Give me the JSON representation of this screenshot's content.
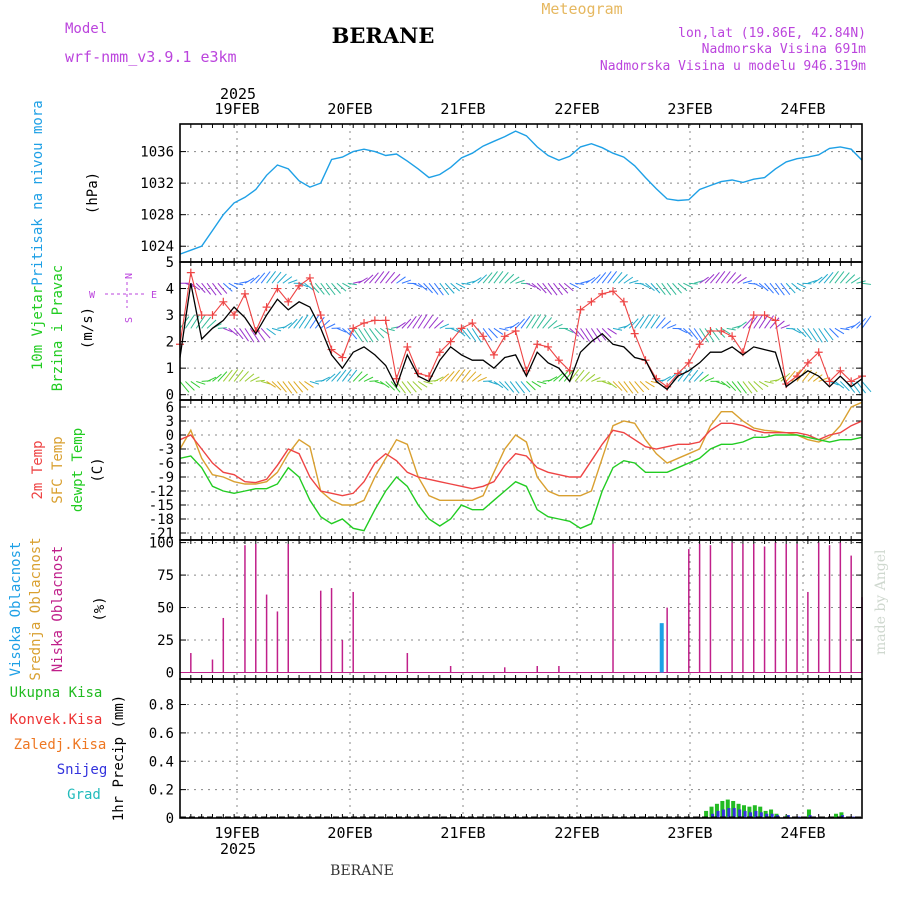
{
  "header": {
    "model_label": "Model",
    "model_name": "wrf-nmm_v3.9.1  e3km",
    "station": "BERANE",
    "product": "Meteogram",
    "lonlat": "lon,lat (19.86E, 42.84N)",
    "elevation": "Nadmorska Visina 691m",
    "model_elevation": "Nadmorska Visina u modelu 946.319m",
    "footer_station": "BERANE",
    "credit": "made by Angel"
  },
  "time_axis": {
    "year": "2025",
    "days": [
      "19FEB",
      "20FEB",
      "21FEB",
      "22FEB",
      "23FEB",
      "24FEB"
    ]
  },
  "colors": {
    "pressure": "#1ea0e6",
    "wind_label": "#22cc22",
    "wind_dir": "#bb44dd",
    "temp_2m": "#ee4444",
    "temp_sfc": "#d9a030",
    "temp_dew": "#22cc22",
    "cloud_high": "#1ea0e6",
    "cloud_mid": "#d9a030",
    "cloud_low": "#c0208a",
    "precip_total": "#22bb22",
    "precip_conv": "#ee3333",
    "precip_frz": "#ee7722",
    "precip_snow": "#3333dd",
    "precip_hail": "#22bbbb"
  },
  "chart_data": [
    {
      "type": "line",
      "ylabel": [
        "Pritisak na nivou mora",
        "(hPa)"
      ],
      "ylim": [
        1022,
        1039.5
      ],
      "yticks": [
        1024,
        1028,
        1032,
        1036
      ],
      "x": [
        0,
        1,
        2,
        3,
        4,
        5,
        6,
        7,
        8,
        9,
        10,
        11,
        12,
        13,
        14,
        15,
        16,
        17,
        18,
        19,
        20,
        21,
        22,
        23,
        24,
        25,
        26,
        27,
        28,
        29,
        30,
        31,
        32,
        33,
        34,
        35,
        36,
        37,
        38,
        39,
        40,
        41,
        42,
        43,
        44,
        45,
        46,
        47,
        48,
        49,
        50,
        51,
        52,
        53,
        54,
        55,
        56,
        57,
        58,
        59,
        60,
        61,
        62,
        63
      ],
      "series": [
        {
          "values": [
            1023,
            1023.5,
            1024,
            1026,
            1028,
            1029.5,
            1030.2,
            1031.2,
            1033,
            1034.3,
            1033.8,
            1032.3,
            1031.5,
            1032,
            1035,
            1035.3,
            1036,
            1036.3,
            1036,
            1035.5,
            1035.7,
            1034.8,
            1033.8,
            1032.7,
            1033.1,
            1034,
            1035.2,
            1035.8,
            1036.7,
            1037.3,
            1037.9,
            1038.6,
            1038,
            1036.6,
            1035.5,
            1034.9,
            1035.4,
            1036.6,
            1037,
            1036.5,
            1035.8,
            1035.3,
            1034.2,
            1032.7,
            1031.3,
            1030,
            1029.8,
            1029.9,
            1031.2,
            1031.7,
            1032.2,
            1032.4,
            1032.1,
            1032.5,
            1032.7,
            1033.8,
            1034.7,
            1035.1,
            1035.3,
            1035.6,
            1036.4,
            1036.6,
            1036.3,
            1034.9
          ]
        }
      ]
    },
    {
      "type": "line",
      "ylabel": [
        "10m Vjetar",
        "Brzina i Pravac",
        "(m/s)"
      ],
      "compass": {
        "n": "N",
        "w": "W",
        "e": "E",
        "s": "S"
      },
      "ylim": [
        -0.2,
        5
      ],
      "yticks": [
        0,
        1,
        2,
        3,
        4,
        5
      ],
      "x": [
        0,
        1,
        2,
        3,
        4,
        5,
        6,
        7,
        8,
        9,
        10,
        11,
        12,
        13,
        14,
        15,
        16,
        17,
        18,
        19,
        20,
        21,
        22,
        23,
        24,
        25,
        26,
        27,
        28,
        29,
        30,
        31,
        32,
        33,
        34,
        35,
        36,
        37,
        38,
        39,
        40,
        41,
        42,
        43,
        44,
        45,
        46,
        47,
        48,
        49,
        50,
        51,
        52,
        53,
        54,
        55,
        56,
        57,
        58,
        59,
        60,
        61,
        62,
        63
      ],
      "series": [
        {
          "name": "speed",
          "values": [
            1.4,
            4.2,
            2.1,
            2.5,
            2.8,
            3.3,
            2.9,
            2.3,
            3.0,
            3.6,
            3.2,
            3.5,
            3.3,
            2.5,
            1.5,
            1.0,
            1.6,
            1.8,
            1.5,
            1.1,
            0.3,
            1.5,
            0.7,
            0.5,
            1.3,
            1.8,
            1.5,
            1.3,
            1.3,
            1.0,
            1.4,
            1.5,
            0.7,
            1.6,
            1.2,
            1.0,
            0.5,
            1.6,
            2.0,
            2.3,
            1.9,
            1.8,
            1.4,
            1.3,
            0.5,
            0.2,
            0.7,
            0.9,
            1.2,
            1.6,
            1.6,
            1.8,
            1.5,
            1.8,
            1.7,
            1.6,
            0.3,
            0.6,
            0.9,
            0.7,
            0.3,
            0.7,
            0.3,
            0.6
          ]
        },
        {
          "name": "gust",
          "values": [
            1.9,
            4.6,
            3.0,
            3.0,
            3.5,
            3.0,
            3.8,
            2.4,
            3.3,
            4.0,
            3.5,
            4.1,
            4.4,
            3.0,
            1.7,
            1.4,
            2.5,
            2.7,
            2.8,
            2.8,
            0.6,
            1.8,
            0.8,
            0.7,
            1.6,
            2.0,
            2.5,
            2.7,
            2.2,
            1.5,
            2.2,
            2.4,
            0.9,
            1.9,
            1.8,
            1.3,
            0.9,
            3.2,
            3.5,
            3.8,
            3.9,
            3.5,
            2.3,
            1.3,
            0.6,
            0.3,
            0.8,
            1.2,
            1.9,
            2.4,
            2.4,
            2.2,
            1.6,
            3.0,
            3.0,
            2.8,
            0.4,
            0.7,
            1.2,
            1.6,
            0.5,
            0.9,
            0.5,
            0.7
          ]
        }
      ],
      "direction_bands": [
        4.2,
        2.5,
        0.5
      ]
    },
    {
      "type": "line",
      "ylabel": [
        "2m Temp",
        "SFC Temp",
        "dewpt Temp",
        "(C)"
      ],
      "ylim": [
        -22.5,
        7.5
      ],
      "yticks": [
        -21,
        -18,
        -15,
        -12,
        -9,
        -6,
        -3,
        0,
        3,
        6
      ],
      "x": [
        0,
        1,
        2,
        3,
        4,
        5,
        6,
        7,
        8,
        9,
        10,
        11,
        12,
        13,
        14,
        15,
        16,
        17,
        18,
        19,
        20,
        21,
        22,
        23,
        24,
        25,
        26,
        27,
        28,
        29,
        30,
        31,
        32,
        33,
        34,
        35,
        36,
        37,
        38,
        39,
        40,
        41,
        42,
        43,
        44,
        45,
        46,
        47,
        48,
        49,
        50,
        51,
        52,
        53,
        54,
        55,
        56,
        57,
        58,
        59,
        60,
        61,
        62,
        63
      ],
      "series": [
        {
          "name": "2m Temp",
          "values": [
            -1,
            0,
            -3,
            -6,
            -8,
            -8.5,
            -10,
            -10.2,
            -9.5,
            -6.5,
            -3,
            -4,
            -9,
            -12,
            -12.5,
            -13,
            -12.5,
            -10,
            -6,
            -4,
            -5.5,
            -8,
            -9,
            -9.5,
            -10,
            -10.5,
            -11,
            -11.5,
            -11,
            -10,
            -6.5,
            -4,
            -4.5,
            -7,
            -8,
            -8.5,
            -9,
            -9,
            -5.5,
            -2,
            1,
            0.5,
            -1,
            -2.5,
            -3,
            -2.5,
            -2,
            -2,
            -1.5,
            1,
            2.5,
            2.5,
            2,
            1,
            0.5,
            0.5,
            0.5,
            0.5,
            0,
            -1,
            0,
            0.5,
            2,
            3
          ]
        },
        {
          "name": "SFC Temp",
          "values": [
            -3,
            1,
            -5,
            -8.5,
            -9,
            -10,
            -10.5,
            -10.5,
            -10,
            -8,
            -4,
            -1,
            -2.5,
            -12,
            -14,
            -15,
            -15,
            -14,
            -9,
            -5,
            -1,
            -2,
            -9,
            -13,
            -14,
            -14,
            -14,
            -14,
            -13,
            -8,
            -3,
            0,
            -1.5,
            -9,
            -12,
            -13,
            -13,
            -13,
            -12,
            -5,
            2,
            3,
            2.5,
            -1,
            -4,
            -6,
            -5,
            -4,
            -3,
            2,
            5,
            5,
            3,
            1.5,
            1,
            0.8,
            0.5,
            0,
            -1,
            -1.5,
            -0.5,
            2,
            6,
            7
          ]
        },
        {
          "name": "dewpt Temp",
          "values": [
            -5,
            -4.5,
            -7,
            -11,
            -12,
            -12.5,
            -12,
            -11.5,
            -11.5,
            -10.5,
            -7,
            -9,
            -14,
            -17.5,
            -19,
            -18,
            -20,
            -20.5,
            -16,
            -12,
            -9,
            -11,
            -15,
            -18,
            -19.5,
            -18,
            -15,
            -16,
            -16,
            -14,
            -12,
            -10,
            -11,
            -16,
            -17.5,
            -18,
            -18.5,
            -20,
            -19,
            -12,
            -7,
            -5.5,
            -6,
            -8,
            -8,
            -8,
            -7,
            -6,
            -5,
            -3,
            -2,
            -2,
            -1.5,
            -0.5,
            -0.5,
            0,
            0,
            0,
            -0.5,
            -1,
            -1.5,
            -1,
            -1,
            -0.5
          ]
        }
      ]
    },
    {
      "type": "bar",
      "ylabel": [
        "Visoka Oblacnost",
        "Srednja Oblacnost",
        "Niska Oblacnost",
        "(%)"
      ],
      "ylim": [
        -5,
        102
      ],
      "yticks": [
        0,
        25,
        50,
        75,
        100
      ],
      "series": [
        {
          "name": "Niska Oblacnost",
          "x": [
            1,
            3,
            4,
            6,
            7,
            8,
            9,
            10,
            13,
            14,
            15,
            16,
            21,
            25,
            30,
            33,
            35,
            40,
            45,
            47,
            48,
            49,
            51,
            52,
            53,
            54,
            55,
            56,
            57,
            58,
            59,
            60,
            61,
            62,
            63
          ],
          "values": [
            15,
            10,
            42,
            98,
            99,
            60,
            47,
            99,
            63,
            65,
            25,
            62,
            15,
            5,
            4,
            5,
            5,
            99,
            50,
            95,
            99,
            98,
            100,
            99,
            99,
            97,
            100,
            99,
            99,
            62,
            100,
            98,
            100,
            90,
            58
          ]
        },
        {
          "name": "Visoka Oblacnost",
          "x": [
            44.5
          ],
          "values": [
            38
          ]
        }
      ]
    },
    {
      "type": "bar",
      "ylabel": [
        "1hr Precip (mm)"
      ],
      "legend": [
        "Ukupna Kisa",
        "Konvek.Kisa",
        "Zaledj.Kisa",
        "Snijeg",
        "Grad"
      ],
      "ylim": [
        0,
        0.98
      ],
      "yticks": [
        0,
        0.2,
        0.4,
        0.6,
        0.8
      ],
      "series": [
        {
          "name": "Ukupna Kisa",
          "x": [
            48.6,
            49.1,
            49.6,
            50.1,
            50.6,
            51.1,
            51.6,
            52.1,
            52.6,
            53.1,
            53.6,
            54.1,
            54.6,
            55.1,
            56.1,
            58.1,
            60.6,
            61.1
          ],
          "values": [
            0.05,
            0.08,
            0.1,
            0.12,
            0.13,
            0.12,
            0.1,
            0.09,
            0.08,
            0.09,
            0.08,
            0.05,
            0.06,
            0.03,
            0.02,
            0.06,
            0.03,
            0.04
          ]
        },
        {
          "name": "Snijeg",
          "x": [
            49.2,
            49.7,
            50.2,
            50.7,
            51.2,
            51.7,
            52.2,
            52.7,
            53.2,
            53.7,
            54.2,
            54.7,
            55.2,
            56.2,
            57.2,
            58.2,
            59.2,
            60.2,
            61.2,
            62.2
          ],
          "values": [
            0.03,
            0.05,
            0.06,
            0.07,
            0.07,
            0.06,
            0.05,
            0.04,
            0.05,
            0.04,
            0.03,
            0.03,
            0.02,
            0.02,
            0.01,
            0.02,
            0.01,
            0.01,
            0.02,
            0.01
          ]
        }
      ]
    }
  ]
}
